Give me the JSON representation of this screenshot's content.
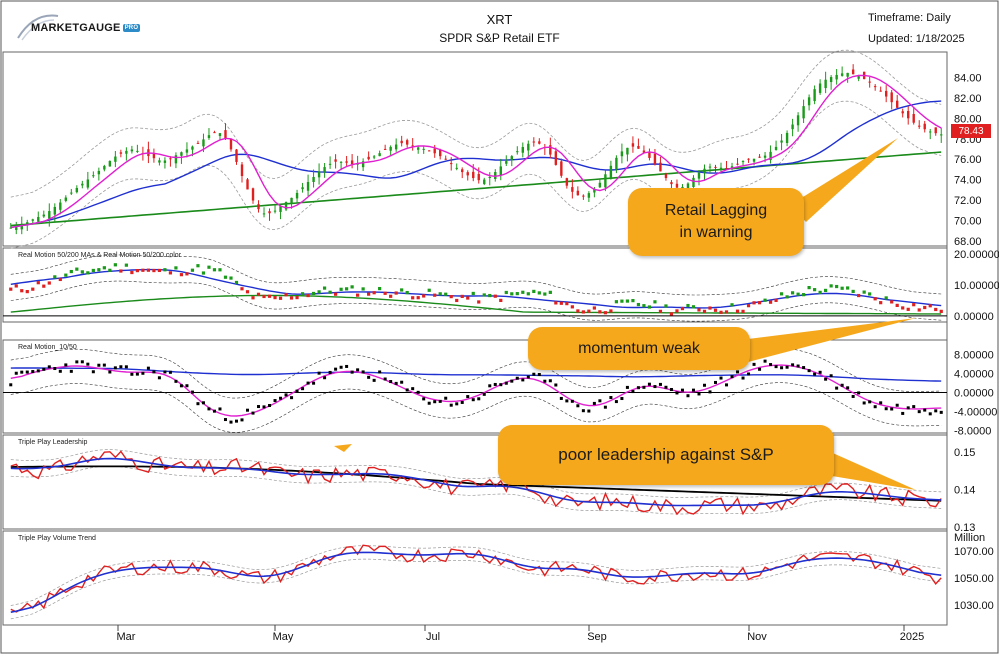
{
  "header": {
    "logo_text": "MARKETGAUGE",
    "logo_badge": "PRO",
    "symbol": "XRT",
    "name": "SPDR S&P Retail ETF",
    "timeframe": "Timeframe: Daily",
    "updated": "Updated: 1/18/2025"
  },
  "callouts": {
    "retail": [
      "Retail Lagging",
      "in warning"
    ],
    "momentum": "momentum weak",
    "leadership": "poor leadership against S&P"
  },
  "colors": {
    "up": "#1a9a1a",
    "down": "#e02020",
    "magenta": "#e020d0",
    "blue": "#1f30d0",
    "green": "#1a8a1a",
    "red": "#e02020",
    "black": "#000000",
    "band": "#9a9a9a",
    "callout": "#f5a81c"
  },
  "chart_data": [
    {
      "type": "candlestick",
      "title": "XRT SPDR S&P Retail ETF",
      "last_price": "78.43",
      "yticks": [
        "84.00",
        "82.00",
        "80.00",
        "78.00",
        "76.00",
        "74.00",
        "72.00",
        "70.00",
        "68.00"
      ],
      "ylim": [
        67.5,
        86.5
      ],
      "close": [
        69.3,
        69.6,
        69.8,
        70.2,
        70.5,
        71.0,
        71.6,
        72.3,
        73.0,
        73.6,
        74.2,
        74.8,
        75.5,
        76.2,
        76.6,
        77.0,
        76.8,
        76.4,
        76.1,
        75.8,
        76.0,
        76.5,
        76.9,
        77.3,
        77.8,
        78.4,
        78.8,
        78.0,
        76.5,
        74.5,
        72.6,
        71.2,
        70.6,
        70.8,
        71.5,
        72.0,
        72.7,
        73.5,
        74.2,
        75.0,
        75.5,
        75.8,
        75.7,
        75.5,
        75.7,
        76.0,
        76.4,
        76.9,
        77.3,
        77.6,
        77.4,
        77.2,
        77.0,
        76.7,
        76.3,
        75.8,
        75.2,
        74.6,
        74.2,
        73.9,
        74.1,
        74.8,
        75.6,
        76.3,
        77.0,
        77.5,
        77.7,
        77.3,
        76.3,
        74.7,
        73.3,
        72.5,
        72.4,
        72.8,
        73.6,
        74.8,
        76.0,
        76.9,
        77.3,
        77.0,
        76.4,
        75.5,
        74.5,
        73.6,
        73.1,
        73.5,
        74.3,
        75.0,
        75.3,
        75.2,
        75.1,
        75.4,
        75.8,
        76.0,
        76.1,
        76.4,
        77.0,
        77.9,
        79.0,
        80.3,
        81.6,
        82.8,
        83.6,
        84.0,
        84.3,
        84.5,
        84.3,
        84.0,
        83.5,
        82.9,
        82.2,
        81.4,
        80.6,
        79.9,
        79.3,
        78.9,
        78.6,
        78.43
      ],
      "dates": [
        "Mar",
        "May",
        "Jul",
        "Sep",
        "Nov",
        "2025"
      ]
    },
    {
      "type": "scatter",
      "title": "Real Motion 50/200 MAs & Real Motion 50/200 color",
      "yticks": [
        "20.00000",
        "10.00000",
        "0.00000"
      ],
      "ylim": [
        -2,
        22
      ],
      "values": [
        8.2,
        8.6,
        9.0,
        9.6,
        10.4,
        11.3,
        12.1,
        12.9,
        13.6,
        14.2,
        14.7,
        15.1,
        15.4,
        15.6,
        15.7,
        15.5,
        15.2,
        14.8,
        14.4,
        14.2,
        14.3,
        14.6,
        14.9,
        15.1,
        15.2,
        14.9,
        14.3,
        12.9,
        10.8,
        8.6,
        6.9,
        5.9,
        5.4,
        5.4,
        5.8,
        6.3,
        6.8,
        7.3,
        7.6,
        7.8,
        7.9,
        8.0,
        8.1,
        8.1,
        8.1,
        8.0,
        7.9,
        7.8,
        7.6,
        7.4,
        7.3,
        7.2,
        7.0,
        6.8,
        6.6,
        6.4,
        6.2,
        6.0,
        5.8,
        5.7,
        5.7,
        6.0,
        6.4,
        6.8,
        7.1,
        7.3,
        7.3,
        7.0,
        6.2,
        4.8,
        3.4,
        2.4,
        1.9,
        1.8,
        2.0,
        2.5,
        3.1,
        3.6,
        3.9,
        3.9,
        3.6,
        3.1,
        2.6,
        2.1,
        1.9,
        2.0,
        2.3,
        2.5,
        2.5,
        2.4,
        2.3,
        2.4,
        2.7,
        3.1,
        3.6,
        4.3,
        5.1,
        6.0,
        6.8,
        7.5,
        8.0,
        8.4,
        8.6,
        8.6,
        8.5,
        8.2,
        7.8,
        7.2,
        6.5,
        5.8,
        5.1,
        4.4,
        3.8,
        3.3,
        2.9,
        2.6,
        2.4,
        2.2
      ]
    },
    {
      "type": "scatter",
      "title": "Real Motion_10/50",
      "yticks": [
        "8.00000",
        "4.00000",
        "0.00000",
        "-4.00000",
        "-8.0000"
      ],
      "ylim": [
        -8.5,
        11
      ],
      "values": [
        2.5,
        3.2,
        3.8,
        4.3,
        4.7,
        5.0,
        5.3,
        5.5,
        5.6,
        5.6,
        5.4,
        5.1,
        4.8,
        4.5,
        4.3,
        4.2,
        4.2,
        4.3,
        4.3,
        4.1,
        3.5,
        2.5,
        1.1,
        -0.6,
        -2.2,
        -3.5,
        -4.4,
        -4.9,
        -5.1,
        -5.0,
        -4.6,
        -4.0,
        -3.3,
        -2.5,
        -1.6,
        -0.6,
        0.5,
        1.5,
        2.5,
        3.3,
        3.9,
        4.3,
        4.5,
        4.5,
        4.3,
        3.9,
        3.4,
        2.7,
        2.0,
        1.2,
        0.4,
        -0.4,
        -1.0,
        -1.5,
        -1.8,
        -2.0,
        -2.0,
        -1.7,
        -1.2,
        -0.5,
        0.3,
        1.2,
        2.0,
        2.7,
        3.1,
        3.2,
        2.9,
        2.2,
        1.2,
        0.0,
        -1.2,
        -2.2,
        -2.8,
        -3.0,
        -2.8,
        -2.2,
        -1.3,
        -0.3,
        0.6,
        1.2,
        1.5,
        1.4,
        1.0,
        0.5,
        0.1,
        -0.1,
        0.0,
        0.4,
        1.0,
        1.7,
        2.5,
        3.3,
        4.1,
        4.8,
        5.3,
        5.6,
        5.8,
        5.8,
        5.7,
        5.4,
        5.0,
        4.4,
        3.7,
        2.8,
        1.8,
        0.8,
        -0.2,
        -1.1,
        -1.9,
        -2.5,
        -2.9,
        -3.2,
        -3.4,
        -3.5,
        -3.5,
        -3.4,
        -3.3,
        -3.2
      ]
    },
    {
      "type": "line",
      "title": "Triple Play Leadership",
      "yticks": [
        "0.15",
        "0.14",
        "0.13"
      ],
      "ylim": [
        0.1295,
        0.1545
      ],
      "values": [
        0.1465,
        0.146,
        0.1456,
        0.1452,
        0.145,
        0.1451,
        0.1455,
        0.1462,
        0.147,
        0.1478,
        0.1484,
        0.1488,
        0.149,
        0.1489,
        0.1486,
        0.1481,
        0.1475,
        0.1469,
        0.1465,
        0.1463,
        0.1462,
        0.146,
        0.1458,
        0.1456,
        0.1455,
        0.1455,
        0.1456,
        0.1458,
        0.146,
        0.146,
        0.1458,
        0.1455,
        0.145,
        0.1446,
        0.1443,
        0.144,
        0.1438,
        0.1437,
        0.1437,
        0.1438,
        0.144,
        0.1442,
        0.1443,
        0.1443,
        0.1442,
        0.1441,
        0.1441,
        0.1442,
        0.1443,
        0.1443,
        0.144,
        0.1434,
        0.1426,
        0.1418,
        0.1412,
        0.1408,
        0.1406,
        0.1405,
        0.1404,
        0.1404,
        0.1406,
        0.141,
        0.1414,
        0.1416,
        0.1415,
        0.141,
        0.14,
        0.1388,
        0.1376,
        0.1368,
        0.1364,
        0.1363,
        0.1364,
        0.1366,
        0.1368,
        0.1369,
        0.1369,
        0.1367,
        0.1365,
        0.1363,
        0.1361,
        0.1359,
        0.1357,
        0.1356,
        0.1355,
        0.1355,
        0.1356,
        0.1358,
        0.136,
        0.1361,
        0.1361,
        0.136,
        0.1358,
        0.1356,
        0.1355,
        0.1355,
        0.1358,
        0.1364,
        0.1372,
        0.1381,
        0.1388,
        0.1393,
        0.1396,
        0.1398,
        0.1398,
        0.1397,
        0.1395,
        0.1392,
        0.1389,
        0.1386,
        0.1383,
        0.138,
        0.1378,
        0.1376,
        0.1374,
        0.1372,
        0.137,
        0.1369
      ]
    },
    {
      "type": "line",
      "title": "Triple Play Volume Trend",
      "unit_label": "Million",
      "yticks": [
        "1070.00",
        "1050.00",
        "1030.00"
      ],
      "ylim": [
        1015,
        1085
      ],
      "values": [
        1022.0,
        1023.5,
        1025.5,
        1028.0,
        1031.0,
        1034.5,
        1038.0,
        1041.5,
        1044.5,
        1047.5,
        1050.0,
        1052.0,
        1053.5,
        1055.0,
        1056.0,
        1057.0,
        1057.5,
        1058.0,
        1058.0,
        1058.0,
        1058.0,
        1058.0,
        1058.0,
        1058.0,
        1058.0,
        1057.5,
        1057.0,
        1056.0,
        1054.5,
        1053.0,
        1051.5,
        1050.5,
        1050.0,
        1050.5,
        1051.5,
        1053.0,
        1055.0,
        1057.5,
        1060.0,
        1062.5,
        1064.5,
        1066.5,
        1068.0,
        1069.0,
        1069.5,
        1069.5,
        1069.5,
        1069.0,
        1068.5,
        1068.0,
        1067.5,
        1067.0,
        1067.0,
        1067.0,
        1067.0,
        1067.5,
        1068.0,
        1068.5,
        1068.5,
        1068.5,
        1068.0,
        1067.0,
        1065.5,
        1063.5,
        1061.5,
        1059.5,
        1058.0,
        1057.0,
        1056.5,
        1056.5,
        1057.0,
        1057.5,
        1057.5,
        1057.0,
        1056.0,
        1054.5,
        1053.0,
        1051.5,
        1050.5,
        1050.0,
        1050.0,
        1050.5,
        1051.0,
        1051.5,
        1052.0,
        1052.5,
        1053.0,
        1053.5,
        1054.0,
        1054.0,
        1054.0,
        1053.5,
        1053.0,
        1052.5,
        1052.5,
        1053.0,
        1054.0,
        1055.5,
        1057.5,
        1059.5,
        1061.5,
        1063.0,
        1064.0,
        1064.5,
        1065.0,
        1065.0,
        1065.0,
        1065.0,
        1064.5,
        1064.0,
        1063.0,
        1062.0,
        1060.5,
        1059.0,
        1057.5,
        1056.0,
        1054.5,
        1053.0,
        1051.5,
        1050.0
      ]
    }
  ]
}
